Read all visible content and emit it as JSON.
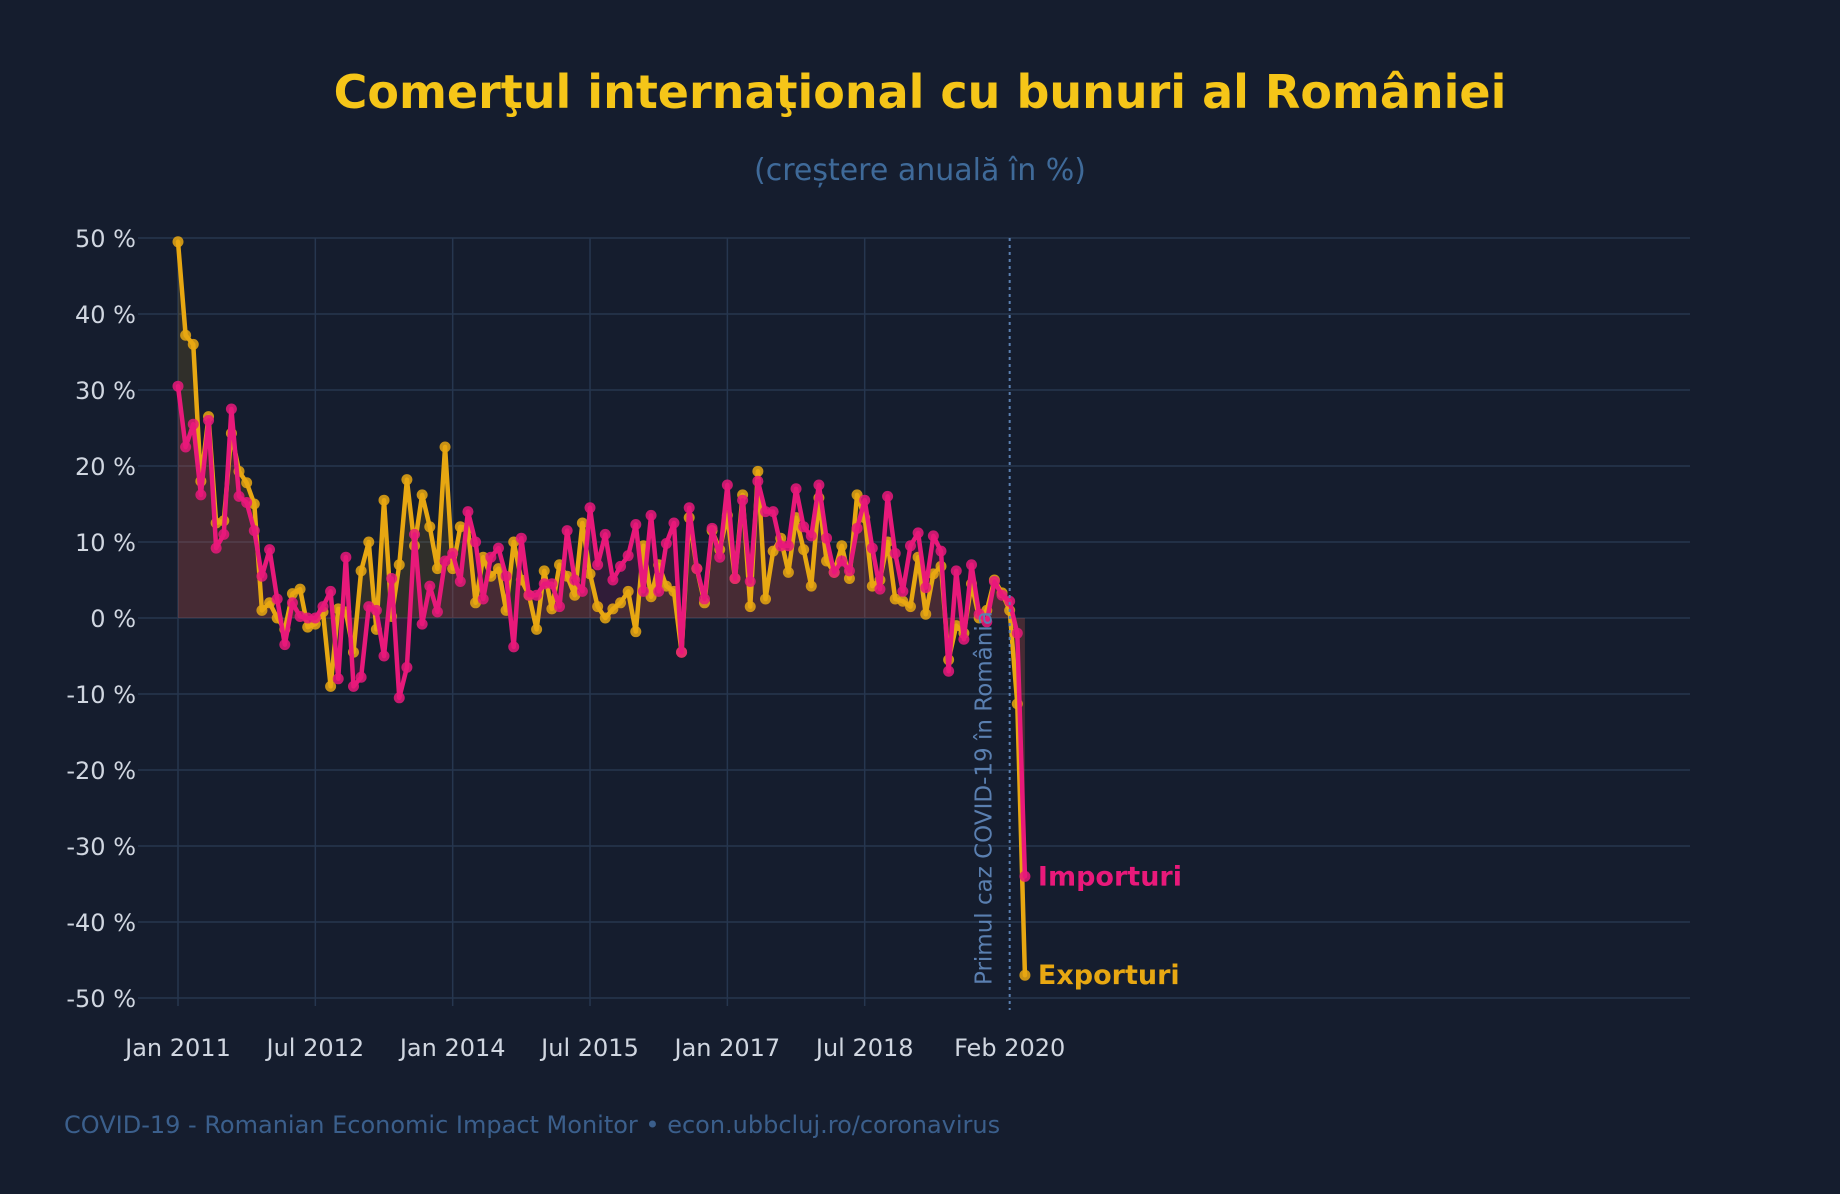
{
  "chart_data": {
    "type": "line",
    "title": "Comerţul internaţional cu bunuri al României",
    "subtitle": "(creștere anuală în %)",
    "source": "COVID-19 - Romanian Economic Impact Monitor • econ.ubbcluj.ro/coronavirus",
    "annotation": "Primul caz COVID-19 în România",
    "annotation_x": "2020-02",
    "x_start": "2011-01",
    "x_ticks": [
      "Jan 2011",
      "Jul 2012",
      "Jan 2014",
      "Jul 2015",
      "Jan 2017",
      "Jul 2018",
      "Feb 2020"
    ],
    "y_ticks": [
      "50 %",
      "40 %",
      "30 %",
      "20 %",
      "10 %",
      "0 %",
      "-10 %",
      "-20 %",
      "-30 %",
      "-40 %",
      "-50 %"
    ],
    "ylim": [
      -50,
      50
    ],
    "grid": true,
    "colors": {
      "background": "#151d2e",
      "title": "#f5c518",
      "subtitle": "#3f6a99",
      "axis_text": "#d0d6e0",
      "grid": "#26364f",
      "source": "#3b5f8c",
      "annotation": "#5a7fb0"
    },
    "series": [
      {
        "name": "Exporturi",
        "color": "#e7a712",
        "values": [
          49.5,
          37.2,
          36.0,
          18.0,
          26.5,
          12.5,
          12.8,
          24.3,
          19.3,
          17.8,
          15.0,
          1.0,
          2.0,
          0.0,
          -1.5,
          3.2,
          3.8,
          -1.2,
          -0.8,
          0.8,
          -9.0,
          1.2,
          0.8,
          -4.5,
          6.2,
          10.0,
          -1.5,
          15.5,
          0.2,
          7.0,
          18.2,
          9.5,
          16.2,
          12.0,
          6.5,
          22.5,
          6.5,
          12.0,
          11.8,
          2.0,
          8.0,
          5.5,
          6.5,
          1.0,
          10.0,
          5.0,
          3.0,
          -1.5,
          6.2,
          1.2,
          7.0,
          5.5,
          3.0,
          12.5,
          5.8,
          1.5,
          0.0,
          1.2,
          2.0,
          3.5,
          -1.8,
          9.5,
          2.8,
          7.0,
          4.2,
          3.5,
          -4.5,
          13.2,
          6.5,
          2.0,
          11.5,
          9.0,
          13.5,
          5.2,
          16.2,
          1.5,
          19.3,
          2.5,
          8.8,
          10.5,
          6.0,
          13.2,
          9.0,
          4.2,
          15.8,
          7.5,
          6.0,
          9.5,
          5.2,
          16.2,
          13.2,
          4.2,
          5.0,
          10.0,
          2.5,
          2.2,
          1.5,
          8.0,
          0.5,
          5.8,
          6.8,
          -5.5,
          -1.0,
          -2.0,
          4.5,
          0.0,
          1.0,
          5.0,
          3.3,
          1.0,
          -11.3,
          -47.0
        ]
      },
      {
        "name": "Importuri",
        "color": "#e8197a",
        "values": [
          30.5,
          22.5,
          25.5,
          16.2,
          26.0,
          9.2,
          11.0,
          27.5,
          16.0,
          15.2,
          11.5,
          5.5,
          9.0,
          2.5,
          -3.5,
          2.0,
          0.2,
          0.0,
          0.0,
          1.5,
          3.5,
          -8.0,
          8.0,
          -9.0,
          -7.8,
          1.5,
          1.0,
          -5.0,
          5.2,
          -10.5,
          -6.5,
          11.0,
          -0.8,
          4.2,
          0.8,
          7.5,
          8.5,
          4.8,
          14.0,
          10.0,
          2.5,
          8.0,
          9.2,
          5.5,
          -3.8,
          10.5,
          3.0,
          3.0,
          4.5,
          4.5,
          1.5,
          11.5,
          5.0,
          3.5,
          14.5,
          7.0,
          11.0,
          5.0,
          6.8,
          8.2,
          12.3,
          3.5,
          13.5,
          3.5,
          9.8,
          12.5,
          -4.5,
          14.5,
          6.5,
          2.5,
          11.8,
          8.0,
          17.5,
          5.2,
          15.5,
          4.8,
          18.0,
          14.0,
          14.0,
          9.5,
          9.5,
          17.0,
          12.0,
          10.8,
          17.5,
          10.5,
          6.0,
          7.5,
          6.2,
          11.8,
          15.5,
          9.2,
          3.8,
          16.0,
          8.5,
          3.5,
          9.5,
          11.2,
          4.0,
          10.8,
          8.8,
          -7.0,
          6.2,
          -2.8,
          7.0,
          0.5,
          -0.5,
          4.8,
          3.0,
          2.2,
          -2.0,
          -34.0
        ]
      }
    ]
  }
}
